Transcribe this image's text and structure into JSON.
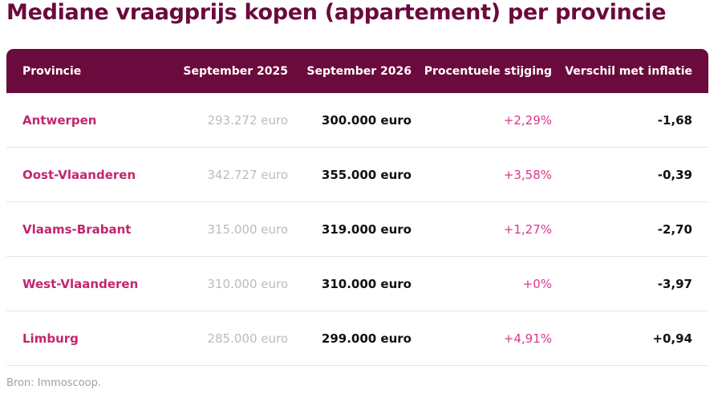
{
  "title": "Mediane vraagprijs kopen (appartement) per provincie",
  "table": {
    "headers": [
      "Provincie",
      "September 2025",
      "September 2026",
      "Procentuele stijging",
      "Verschil met inflatie"
    ],
    "rows": [
      [
        "Antwerpen",
        "293.272 euro",
        "300.000 euro",
        "+2,29%",
        "-1,68"
      ],
      [
        "Oost-Vlaanderen",
        "342.727 euro",
        "355.000 euro",
        "+3,58%",
        "-0,39"
      ],
      [
        "Vlaams-Brabant",
        "315.000 euro",
        "319.000 euro",
        "+1,27%",
        "-2,70"
      ],
      [
        "West-Vlaanderen",
        "310.000 euro",
        "310.000 euro",
        "+0%",
        "-3,97"
      ],
      [
        "Limburg",
        "285.000 euro",
        "299.000 euro",
        "+4,91%",
        "+0,94"
      ]
    ]
  },
  "source": "Bron: Immoscoop.",
  "colors": {
    "brand": "#6b0a3c",
    "province_text": "#c2266f",
    "percentage_text": "#d6378a",
    "muted_text": "#b8bcc2"
  }
}
